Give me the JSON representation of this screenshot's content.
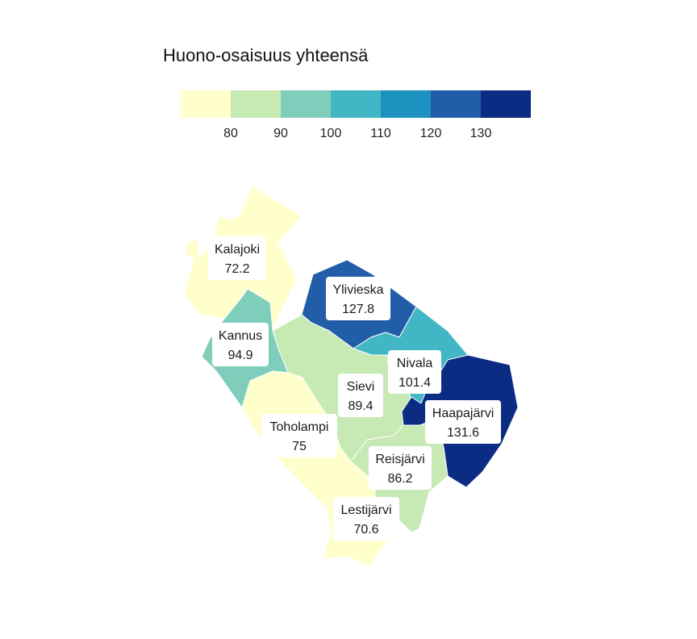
{
  "legend": {
    "title": "Huono-osaisuus yhteensä",
    "bins": [
      {
        "color": "#ffffcc"
      },
      {
        "color": "#c7e9b4"
      },
      {
        "color": "#7fcdbb"
      },
      {
        "color": "#41b6c4"
      },
      {
        "color": "#1d91c0"
      },
      {
        "color": "#225ea8"
      },
      {
        "color": "#0c2c84"
      }
    ],
    "ticks": [
      "80",
      "90",
      "100",
      "110",
      "120",
      "130"
    ]
  },
  "chart_data": {
    "type": "choropleth",
    "title": "Huono-osaisuus yhteensä",
    "regions": [
      {
        "name": "Kalajoki",
        "value": "72.2",
        "color": "#ffffcc"
      },
      {
        "name": "Ylivieska",
        "value": "127.8",
        "color": "#225ea8"
      },
      {
        "name": "Kannus",
        "value": "94.9",
        "color": "#7fcdbb"
      },
      {
        "name": "Nivala",
        "value": "101.4",
        "color": "#41b6c4"
      },
      {
        "name": "Sievi",
        "value": "89.4",
        "color": "#c7e9b4"
      },
      {
        "name": "Haapajärvi",
        "value": "131.6",
        "color": "#0c2c84"
      },
      {
        "name": "Toholampi",
        "value": "75",
        "color": "#ffffcc"
      },
      {
        "name": "Reisjärvi",
        "value": "86.2",
        "color": "#c7e9b4"
      },
      {
        "name": "Lestijärvi",
        "value": "70.6",
        "color": "#ffffcc"
      }
    ]
  }
}
